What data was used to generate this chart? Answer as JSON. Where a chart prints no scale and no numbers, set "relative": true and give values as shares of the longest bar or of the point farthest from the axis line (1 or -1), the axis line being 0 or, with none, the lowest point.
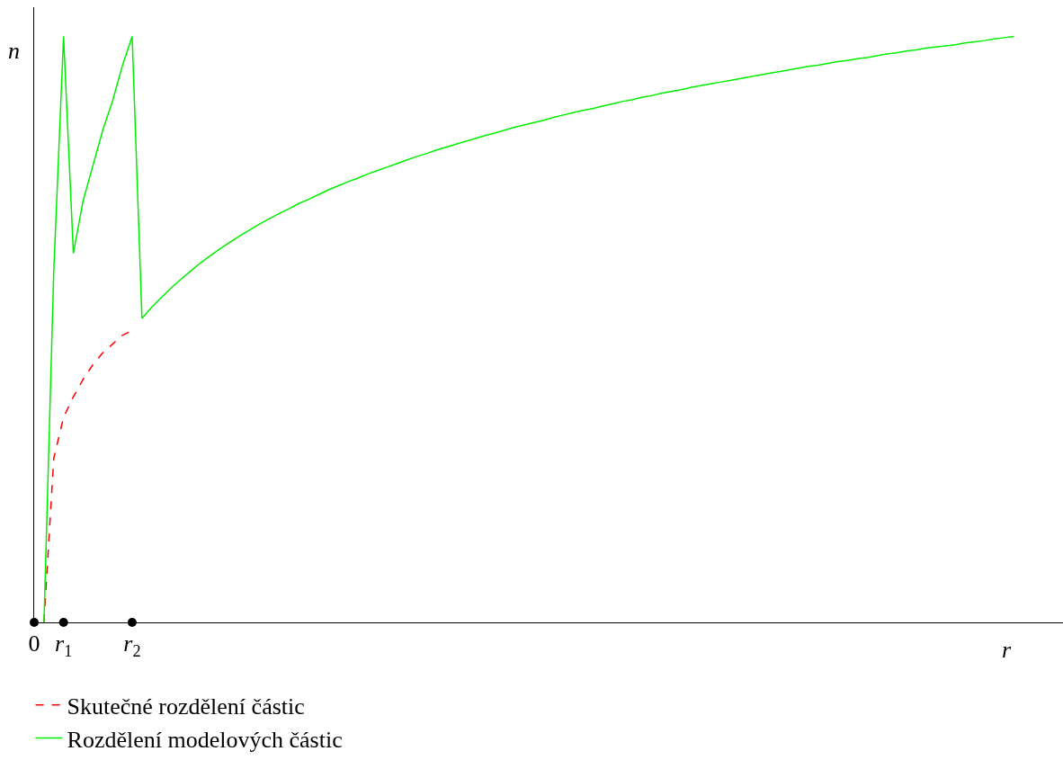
{
  "chart_data": {
    "type": "line",
    "relative": true,
    "xlabel": "r",
    "ylabel": "n",
    "legend": "bottom left",
    "categories": [
      "0",
      null,
      null,
      "r$_{1}$",
      null,
      null,
      null,
      null,
      null,
      null,
      "r$_{2}$",
      null,
      null,
      null,
      null,
      null,
      null,
      null,
      null,
      null,
      null,
      null,
      null,
      null,
      null,
      null,
      null,
      null,
      null,
      null,
      null,
      null,
      null,
      null,
      null,
      null,
      null,
      null,
      null,
      null,
      null,
      null,
      null,
      null,
      null,
      null,
      null,
      null,
      null,
      null,
      null,
      null,
      null,
      null,
      null,
      null,
      null,
      null,
      null,
      null,
      null,
      null,
      null,
      null,
      null,
      null,
      null,
      null,
      null,
      null,
      null,
      null,
      null,
      null,
      null,
      null,
      null,
      null,
      null,
      null,
      null,
      null,
      null,
      null,
      null,
      null,
      null,
      null,
      null,
      null,
      null,
      null,
      null,
      null,
      null,
      null,
      null,
      null,
      null,
      null,
      null
    ],
    "series": [
      {
        "name": "Skutečné rozdělení částic",
        "color": "#ff0000",
        "line_style": "dashed",
        "values": [
          null,
          0,
          0.28,
          0.35,
          0.385,
          0.415,
          0.44,
          0.46,
          0.475,
          0.49,
          0.498,
          null,
          null,
          null,
          null,
          null,
          null,
          null,
          null,
          null,
          null,
          null,
          null,
          null,
          null,
          null,
          null,
          null,
          null,
          null,
          null,
          null,
          null,
          null,
          null,
          null,
          null,
          null,
          null,
          null,
          null,
          null,
          null,
          null,
          null,
          null,
          null,
          null,
          null,
          null,
          null,
          null,
          null,
          null,
          null,
          null,
          null,
          null,
          null,
          null,
          null,
          null,
          null,
          null,
          null,
          null,
          null,
          null,
          null,
          null,
          null,
          null,
          null,
          null,
          null,
          null,
          null,
          null,
          null,
          null,
          null,
          null,
          null,
          null,
          null,
          null,
          null,
          null,
          null,
          null,
          null,
          null,
          null,
          null,
          null,
          null,
          null,
          null,
          null,
          null,
          null
        ]
      },
      {
        "name": "Rozdělení modelových částic",
        "color": "#00ee00",
        "line_style": "solid",
        "values": [
          null,
          0,
          0.6,
          1.0,
          0.63,
          0.72,
          0.78,
          0.84,
          0.89,
          0.95,
          1.0,
          0.519,
          0.538,
          0.555,
          0.571,
          0.586,
          0.6,
          0.614,
          0.626,
          0.638,
          0.649,
          0.66,
          0.67,
          0.68,
          0.689,
          0.698,
          0.706,
          0.715,
          0.722,
          0.73,
          0.738,
          0.745,
          0.752,
          0.758,
          0.765,
          0.771,
          0.777,
          0.783,
          0.789,
          0.795,
          0.8,
          0.806,
          0.811,
          0.816,
          0.821,
          0.826,
          0.831,
          0.835,
          0.84,
          0.845,
          0.849,
          0.853,
          0.857,
          0.862,
          0.866,
          0.87,
          0.874,
          0.877,
          0.881,
          0.885,
          0.889,
          0.892,
          0.896,
          0.899,
          0.903,
          0.906,
          0.909,
          0.913,
          0.916,
          0.919,
          0.922,
          0.925,
          0.928,
          0.931,
          0.934,
          0.937,
          0.94,
          0.943,
          0.946,
          0.949,
          0.951,
          0.954,
          0.957,
          0.959,
          0.962,
          0.964,
          0.967,
          0.97,
          0.972,
          0.975,
          0.977,
          0.98,
          0.982,
          0.984,
          0.986,
          0.989,
          0.991,
          0.993,
          0.996,
          0.998,
          1.0
        ]
      },
      {
        "type": "scatter",
        "marker": "circle",
        "color": "#000000",
        "values": [
          0,
          null,
          null,
          0,
          null,
          null,
          null,
          null,
          null,
          null,
          0,
          null,
          null,
          null,
          null,
          null,
          null,
          null,
          null,
          null,
          null,
          null,
          null,
          null,
          null,
          null,
          null,
          null,
          null,
          null,
          null,
          null,
          null,
          null,
          null,
          null,
          null,
          null,
          null,
          null,
          null,
          null,
          null,
          null,
          null,
          null,
          null,
          null,
          null,
          null,
          null,
          null,
          null,
          null,
          null,
          null,
          null,
          null,
          null,
          null,
          null,
          null,
          null,
          null,
          null,
          null,
          null,
          null,
          null,
          null,
          null,
          null,
          null,
          null,
          null,
          null,
          null,
          null,
          null,
          null,
          null,
          null,
          null,
          null,
          null,
          null,
          null,
          null,
          null,
          null,
          null,
          null,
          null,
          null,
          null,
          null,
          null,
          null,
          null,
          null,
          null
        ]
      }
    ]
  }
}
